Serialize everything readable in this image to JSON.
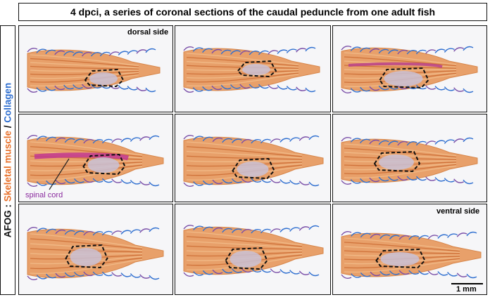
{
  "figure": {
    "title": "4 dpci, a series of coronal sections of the caudal peduncle from one adult fish",
    "side_label": {
      "prefix": "AFOG : ",
      "muscle": "Skeletal muscle",
      "slash": " / ",
      "collagen": "Collagen"
    },
    "annotations": {
      "dorsal": "dorsal side",
      "ventral": "ventral side",
      "spinal_cord": "spinal cord",
      "scale_bar": "1 mm"
    },
    "colors": {
      "muscle": "#e8702a",
      "collagen": "#2f6fd0",
      "spinal_cord": "#8a2a9e",
      "wound_outline": "#111111"
    },
    "panels": [
      {
        "id": "section-1"
      },
      {
        "id": "section-2"
      },
      {
        "id": "section-3"
      },
      {
        "id": "section-4"
      },
      {
        "id": "section-5"
      },
      {
        "id": "section-6"
      },
      {
        "id": "section-7"
      },
      {
        "id": "section-8"
      },
      {
        "id": "section-9"
      }
    ]
  }
}
